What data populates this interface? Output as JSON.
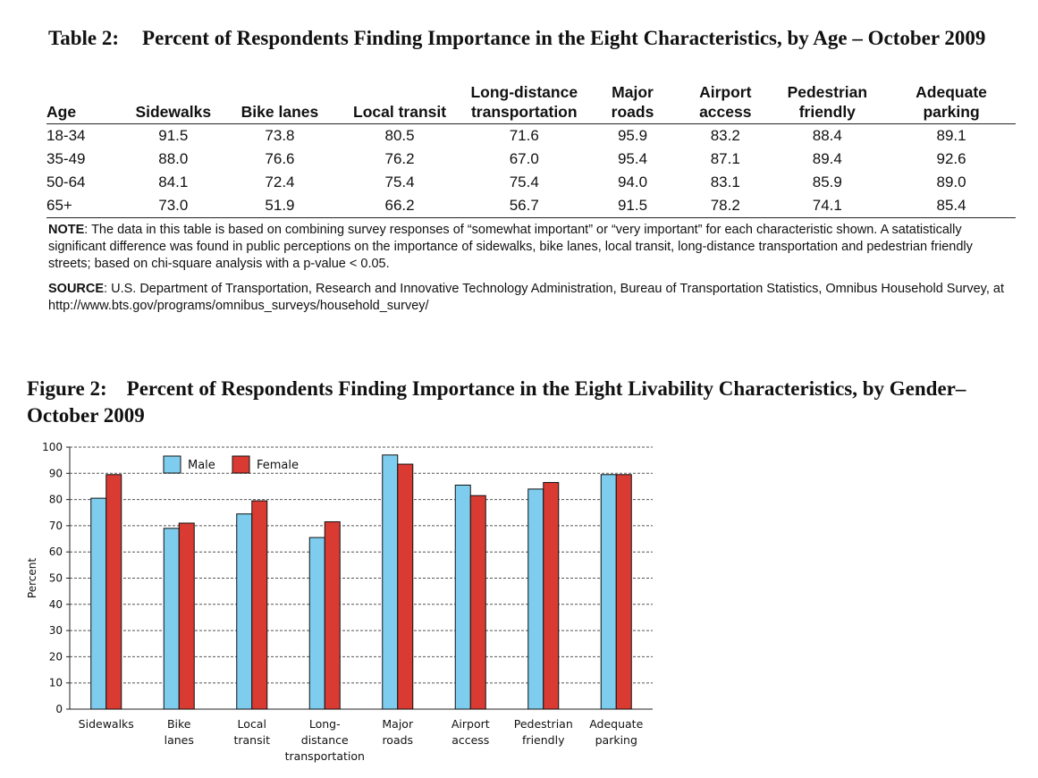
{
  "table": {
    "number": "Table 2:",
    "title": "Percent of Respondents Finding Importance in the Eight Characteristics, by Age – October 2009",
    "columns": [
      [
        "Age"
      ],
      [
        "Sidewalks"
      ],
      [
        "Bike lanes"
      ],
      [
        "Local transit"
      ],
      [
        "Long-distance",
        "transportation"
      ],
      [
        "Major",
        "roads"
      ],
      [
        "Airport",
        "access"
      ],
      [
        "Pedestrian",
        "friendly"
      ],
      [
        "Adequate",
        "parking"
      ]
    ],
    "rows": [
      [
        "18-34",
        "91.5",
        "73.8",
        "80.5",
        "71.6",
        "95.9",
        "83.2",
        "88.4",
        "89.1"
      ],
      [
        "35-49",
        "88.0",
        "76.6",
        "76.2",
        "67.0",
        "95.4",
        "87.1",
        "89.4",
        "92.6"
      ],
      [
        "50-64",
        "84.1",
        "72.4",
        "75.4",
        "75.4",
        "94.0",
        "83.1",
        "85.9",
        "89.0"
      ],
      [
        "65+",
        "73.0",
        "51.9",
        "66.2",
        "56.7",
        "91.5",
        "78.2",
        "74.1",
        "85.4"
      ]
    ],
    "note_label": "NOTE",
    "note_text": ": The data in this table is based on combining survey responses of “somewhat important” or “very important” for each characteristic shown. A satatistically significant difference was found in public perceptions on the importance of sidewalks, bike lanes, local transit, long-distance transportation and pedestrian friendly streets; based on chi-square analysis with a p-value < 0.05.",
    "source_label": "SOURCE",
    "source_text": ": U.S. Department of Transportation, Research and Innovative Technology Administration, Bureau of Transportation Statistics, Omnibus Household Survey, at http://www.bts.gov/programs/omnibus_surveys/household_survey/"
  },
  "figure": {
    "number": "Figure 2:",
    "title": "Percent of Respondents Finding Importance in the Eight Livability Characteristics, by Gender–October 2009"
  },
  "chart_data": {
    "type": "bar",
    "categories": [
      [
        "Sidewalks"
      ],
      [
        "Bike",
        "lanes"
      ],
      [
        "Local",
        "transit"
      ],
      [
        "Long-",
        "distance",
        "transportation"
      ],
      [
        "Major",
        "roads"
      ],
      [
        "Airport",
        "access"
      ],
      [
        "Pedestrian",
        "friendly"
      ],
      [
        "Adequate",
        "parking"
      ]
    ],
    "series": [
      {
        "name": "Male",
        "color": "#7fcdee",
        "values": [
          80.5,
          69,
          74.5,
          65.5,
          97,
          85.5,
          84,
          89.5
        ]
      },
      {
        "name": "Female",
        "color": "#d93a32",
        "values": [
          89.5,
          71,
          79.5,
          71.5,
          93.5,
          81.5,
          86.5,
          89.5
        ]
      }
    ],
    "ylabel": "Percent",
    "ylim": [
      0,
      100
    ],
    "yticks": [
      0,
      10,
      20,
      30,
      40,
      50,
      60,
      70,
      80,
      90,
      100
    ],
    "grid": true,
    "legend": "top-left"
  }
}
